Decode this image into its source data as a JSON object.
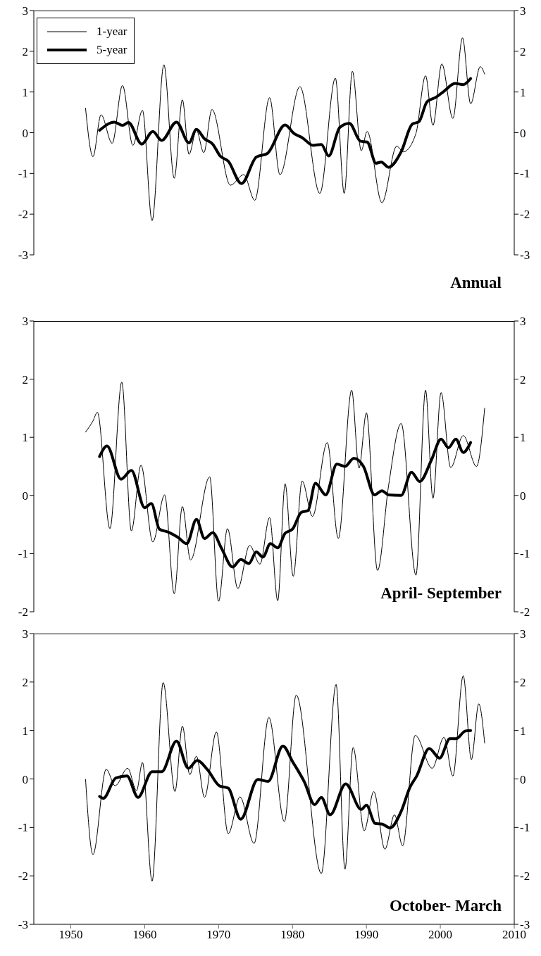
{
  "chart_data": [
    {
      "type": "line",
      "annotations": [
        "Annual"
      ],
      "legend": "top left",
      "tick_labels": "y",
      "xlim": [
        1945,
        2010
      ],
      "xticks": [
        1950,
        1960,
        1970,
        1980,
        1990,
        2000,
        2010
      ],
      "ylim": [
        -3,
        3
      ],
      "yticks": [
        -3,
        -2,
        -1,
        0,
        1,
        2,
        3
      ],
      "y2lim": [
        -3,
        3
      ],
      "y2ticks": [
        -3,
        -2,
        -1,
        0,
        1,
        2,
        3
      ],
      "series": [
        {
          "name": "1-year",
          "color": "#000000",
          "x": [
            1952.0,
            1953.0,
            1954.1,
            1955.6,
            1957.0,
            1958.4,
            1959.7,
            1961.0,
            1962.6,
            1964.0,
            1965.1,
            1966.0,
            1967.0,
            1968.0,
            1969.1,
            1971.6,
            1973.4,
            1974.9,
            1976.9,
            1978.3,
            1981.0,
            1983.7,
            1985.8,
            1987.0,
            1988.1,
            1989.3,
            1990.1,
            1992.1,
            1994.1,
            1995.0,
            1996.7,
            1998.0,
            1999.0,
            2000.2,
            2001.7,
            2003.0,
            2004.1,
            2005.4,
            2006.0
          ],
          "values": [
            0.6,
            -0.59,
            0.44,
            -0.26,
            1.16,
            -0.31,
            0.55,
            -2.16,
            1.67,
            -1.12,
            0.81,
            -0.53,
            0.06,
            -0.49,
            0.57,
            -1.29,
            -1.03,
            -1.66,
            0.86,
            -1.03,
            1.13,
            -1.49,
            1.34,
            -1.49,
            1.51,
            -0.44,
            0.03,
            -1.72,
            -0.33,
            -0.47,
            -0.02,
            1.4,
            0.18,
            1.69,
            0.35,
            2.33,
            0.71,
            1.62,
            1.44
          ]
        },
        {
          "name": "5-year",
          "color": "#000000",
          "x": [
            1953.9,
            1955.9,
            1957.0,
            1957.8,
            1959.6,
            1961.1,
            1962.3,
            1964.3,
            1966.0,
            1967.0,
            1968.1,
            1969.2,
            1970.2,
            1971.3,
            1973.1,
            1975.1,
            1976.6,
            1979.0,
            1980.2,
            1981.3,
            1982.8,
            1983.9,
            1984.9,
            1986.4,
            1987.7,
            1989.2,
            1990.1,
            1991.3,
            1992.0,
            1993.0,
            1994.7,
            1996.2,
            1997.1,
            1998.2,
            1999.4,
            2000.5,
            2002.0,
            2003.1,
            2004.1
          ],
          "values": [
            0.06,
            0.26,
            0.18,
            0.25,
            -0.28,
            0.03,
            -0.19,
            0.26,
            -0.25,
            0.08,
            -0.15,
            -0.28,
            -0.57,
            -0.7,
            -1.25,
            -0.6,
            -0.51,
            0.19,
            -0.02,
            -0.12,
            -0.31,
            -0.29,
            -0.57,
            0.13,
            0.23,
            -0.21,
            -0.23,
            -0.75,
            -0.72,
            -0.85,
            -0.47,
            0.21,
            0.27,
            0.76,
            0.87,
            1.02,
            1.21,
            1.18,
            1.33
          ]
        }
      ]
    },
    {
      "type": "line",
      "annotations": [
        "April- September"
      ],
      "tick_labels": "y",
      "xlim": [
        1945,
        2010
      ],
      "xticks": [
        1950,
        1960,
        1970,
        1980,
        1990,
        2000,
        2010
      ],
      "ylim": [
        -2,
        3
      ],
      "yticks": [
        -2,
        -1,
        0,
        1,
        2,
        3
      ],
      "y2lim": [
        -2,
        3
      ],
      "y2ticks": [
        -2,
        -1,
        0,
        1,
        2,
        3
      ],
      "series": [
        {
          "color": "#000000",
          "x": [
            1952.0,
            1953.0,
            1953.6,
            1955.3,
            1956.9,
            1958.2,
            1959.5,
            1961.1,
            1962.7,
            1964.0,
            1965.1,
            1966.2,
            1968.8,
            1970.0,
            1971.2,
            1972.6,
            1974.2,
            1975.6,
            1976.9,
            1978.0,
            1979.0,
            1980.1,
            1981.3,
            1982.7,
            1984.7,
            1986.2,
            1988.0,
            1989.0,
            1990.0,
            1991.5,
            1993.0,
            1994.7,
            1996.7,
            1998.0,
            1999.0,
            2000.1,
            2001.4,
            2003.1,
            2004.9,
            2006.0
          ],
          "values": [
            1.09,
            1.28,
            1.43,
            -0.57,
            1.95,
            -0.61,
            0.52,
            -0.8,
            0.01,
            -1.69,
            -0.19,
            -1.11,
            0.32,
            -1.82,
            -0.57,
            -1.6,
            -0.86,
            -1.18,
            -0.38,
            -1.81,
            0.2,
            -1.39,
            0.25,
            -0.36,
            0.91,
            -0.74,
            1.81,
            0.47,
            1.42,
            -1.29,
            0.17,
            1.24,
            -1.37,
            1.81,
            -0.05,
            1.77,
            0.48,
            1.03,
            0.5,
            1.5
          ]
        },
        {
          "color": "#000000",
          "x": [
            1953.9,
            1954.9,
            1956.8,
            1958.2,
            1960.0,
            1960.9,
            1962.0,
            1963.2,
            1964.5,
            1965.7,
            1967.0,
            1968.1,
            1969.2,
            1970.4,
            1971.9,
            1973.0,
            1974.1,
            1975.1,
            1976.0,
            1977.0,
            1978.0,
            1979.0,
            1980.0,
            1981.2,
            1982.1,
            1983.1,
            1984.5,
            1986.0,
            1987.1,
            1988.3,
            1989.6,
            1991.1,
            1992.1,
            1993.0,
            1994.7,
            1996.1,
            1997.2,
            1998.8,
            2000.1,
            2001.1,
            2002.1,
            2003.1,
            2004.1
          ],
          "values": [
            0.67,
            0.85,
            0.28,
            0.43,
            -0.21,
            -0.14,
            -0.58,
            -0.63,
            -0.72,
            -0.83,
            -0.41,
            -0.74,
            -0.64,
            -0.91,
            -1.23,
            -1.1,
            -1.17,
            -0.97,
            -1.06,
            -0.83,
            -0.9,
            -0.65,
            -0.58,
            -0.29,
            -0.26,
            0.21,
            0.01,
            0.54,
            0.5,
            0.64,
            0.5,
            0.01,
            0.08,
            0.01,
            0.0,
            0.4,
            0.24,
            0.61,
            0.97,
            0.82,
            0.97,
            0.74,
            0.91
          ]
        }
      ]
    },
    {
      "type": "line",
      "annotations": [
        "October- March"
      ],
      "xlim": [
        1945,
        2010
      ],
      "xticks": [
        1950,
        1960,
        1970,
        1980,
        1990,
        2000,
        2010
      ],
      "ylim": [
        -3,
        3
      ],
      "yticks": [
        -3,
        -2,
        -1,
        0,
        1,
        2,
        3
      ],
      "y2lim": [
        -3,
        3
      ],
      "y2ticks": [
        -3,
        -2,
        -1,
        0,
        1,
        2,
        3
      ],
      "series": [
        {
          "color": "#000000",
          "x": [
            1952.0,
            1953.0,
            1954.8,
            1956.0,
            1957.7,
            1958.9,
            1959.7,
            1961.0,
            1962.5,
            1964.1,
            1965.1,
            1966.1,
            1967.0,
            1968.1,
            1969.7,
            1971.3,
            1972.9,
            1974.8,
            1976.8,
            1978.9,
            1980.5,
            1983.9,
            1985.9,
            1987.1,
            1988.2,
            1989.7,
            1991.0,
            1992.5,
            1993.8,
            1994.9,
            1996.6,
            1998.9,
            2000.5,
            2001.7,
            2003.1,
            2004.2,
            2005.2,
            2006.0
          ],
          "values": [
            -0.01,
            -1.56,
            0.2,
            -0.14,
            0.22,
            -0.24,
            0.34,
            -2.11,
            1.99,
            -0.26,
            1.09,
            0.09,
            0.47,
            -0.38,
            0.97,
            -1.13,
            -0.37,
            -1.33,
            1.27,
            -0.88,
            1.73,
            -1.95,
            1.95,
            -1.86,
            0.65,
            -1.07,
            -0.26,
            -1.45,
            -0.74,
            -1.38,
            0.9,
            0.22,
            0.86,
            0.06,
            2.13,
            0.4,
            1.55,
            0.74
          ]
        },
        {
          "color": "#000000",
          "x": [
            1953.9,
            1954.4,
            1956.1,
            1957.6,
            1959.1,
            1961.0,
            1962.3,
            1964.3,
            1965.9,
            1967.1,
            1968.5,
            1970.1,
            1971.3,
            1973.0,
            1975.3,
            1976.7,
            1978.7,
            1980.0,
            1981.6,
            1983.0,
            1983.9,
            1985.1,
            1987.2,
            1989.3,
            1990.0,
            1991.2,
            1992.1,
            1993.2,
            1994.7,
            1995.9,
            1996.8,
            1998.5,
            1999.9,
            2001.3,
            2002.1,
            2003.4,
            2004.1
          ],
          "values": [
            -0.36,
            -0.4,
            0.02,
            0.06,
            -0.38,
            0.15,
            0.15,
            0.78,
            0.22,
            0.38,
            0.19,
            -0.14,
            -0.19,
            -0.83,
            -0.01,
            -0.05,
            0.68,
            0.36,
            -0.06,
            -0.53,
            -0.38,
            -0.74,
            -0.1,
            -0.63,
            -0.54,
            -0.92,
            -0.93,
            -1.01,
            -0.67,
            -0.17,
            0.06,
            0.63,
            0.43,
            0.83,
            0.83,
            0.99,
            1.0
          ]
        }
      ]
    }
  ]
}
